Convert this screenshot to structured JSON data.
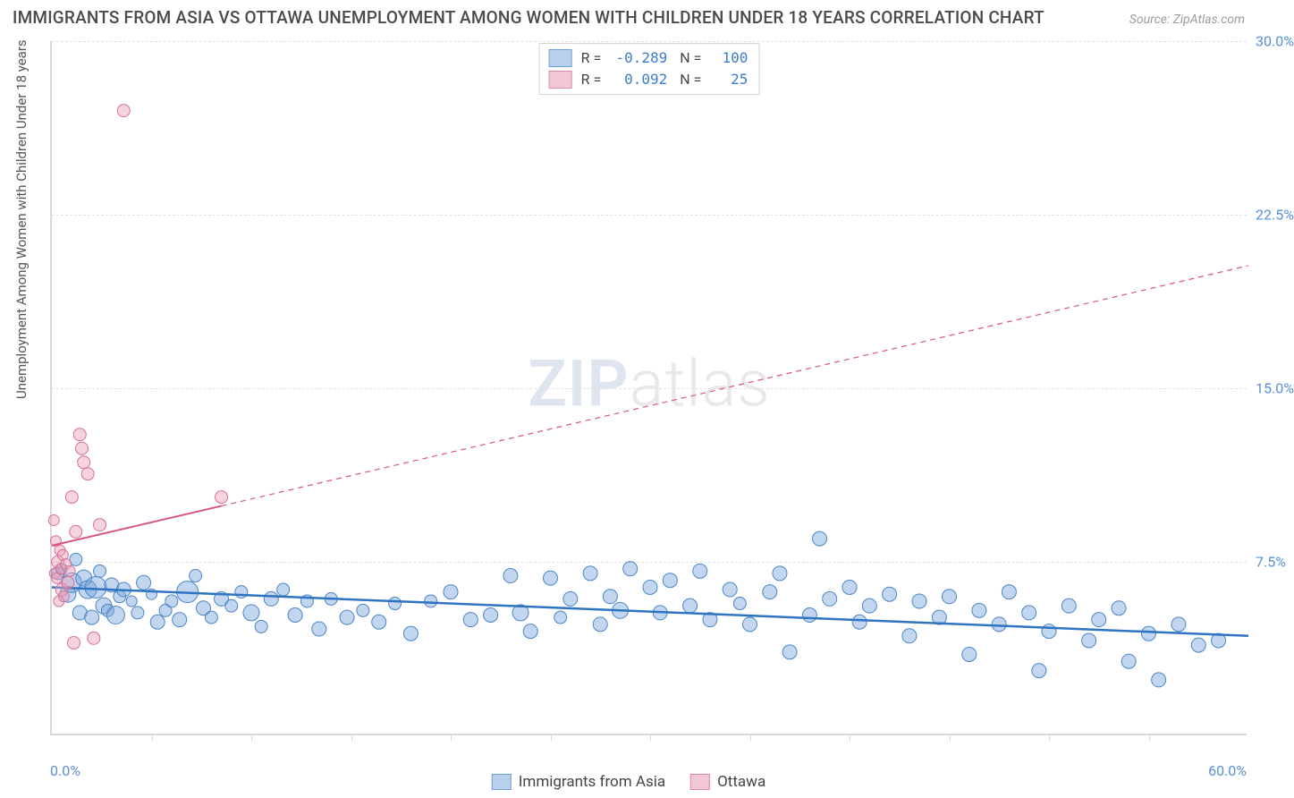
{
  "title": "IMMIGRANTS FROM ASIA VS OTTAWA UNEMPLOYMENT AMONG WOMEN WITH CHILDREN UNDER 18 YEARS CORRELATION CHART",
  "source": "Source: ZipAtlas.com",
  "watermark_zip": "ZIP",
  "watermark_atlas": "atlas",
  "ylabel": "Unemployment Among Women with Children Under 18 years",
  "chart": {
    "type": "scatter",
    "background_color": "#ffffff",
    "grid_color": "#e2e2e2",
    "axis_color": "#d8d8d8",
    "tick_label_color": "#5a8fd6",
    "xlim": [
      0,
      60
    ],
    "ylim": [
      0,
      30
    ],
    "x_origin_label": "0.0%",
    "x_max_label": "60.0%",
    "yticks": [
      {
        "v": 7.5,
        "label": "7.5%"
      },
      {
        "v": 15.0,
        "label": "15.0%"
      },
      {
        "v": 22.5,
        "label": "22.5%"
      },
      {
        "v": 30.0,
        "label": "30.0%"
      }
    ],
    "xticks_minor": [
      5,
      10,
      15,
      20,
      25,
      30,
      35,
      40,
      45,
      50,
      55
    ],
    "series": [
      {
        "key": "asia",
        "name": "Immigrants from Asia",
        "point_fill": "rgba(120,165,220,0.45)",
        "point_stroke": "#4b86c6",
        "line_color": "#2f74c0",
        "line_width": 2.5,
        "line_dash": "none",
        "swatch_fill": "#b9d0ec",
        "swatch_border": "#6f9ed6",
        "R": "-0.289",
        "N": "100",
        "trend": {
          "x1": 0,
          "y1": 6.4,
          "x2": 60,
          "y2": 4.3
        },
        "trend_extent": [
          0,
          60
        ],
        "points": [
          [
            0.3,
            7.0,
            7
          ],
          [
            0.5,
            7.2,
            6
          ],
          [
            0.8,
            6.1,
            9
          ],
          [
            1.0,
            6.6,
            11
          ],
          [
            1.2,
            7.6,
            7
          ],
          [
            1.4,
            5.3,
            8
          ],
          [
            1.6,
            6.8,
            9
          ],
          [
            1.8,
            6.3,
            10
          ],
          [
            2.0,
            5.1,
            8
          ],
          [
            2.2,
            6.4,
            12
          ],
          [
            2.4,
            7.1,
            7
          ],
          [
            2.6,
            5.6,
            9
          ],
          [
            2.8,
            5.4,
            7
          ],
          [
            3.0,
            6.5,
            8
          ],
          [
            3.2,
            5.2,
            10
          ],
          [
            3.4,
            6.0,
            7
          ],
          [
            3.6,
            6.3,
            8
          ],
          [
            4.0,
            5.8,
            6
          ],
          [
            4.3,
            5.3,
            7
          ],
          [
            4.6,
            6.6,
            8
          ],
          [
            5.0,
            6.1,
            6
          ],
          [
            5.3,
            4.9,
            8
          ],
          [
            5.7,
            5.4,
            7
          ],
          [
            6.0,
            5.8,
            7
          ],
          [
            6.4,
            5.0,
            8
          ],
          [
            6.8,
            6.2,
            12
          ],
          [
            7.2,
            6.9,
            7
          ],
          [
            7.6,
            5.5,
            8
          ],
          [
            8.0,
            5.1,
            7
          ],
          [
            8.5,
            5.9,
            8
          ],
          [
            9.0,
            5.6,
            7
          ],
          [
            9.5,
            6.2,
            7
          ],
          [
            10.0,
            5.3,
            9
          ],
          [
            10.5,
            4.7,
            7
          ],
          [
            11.0,
            5.9,
            8
          ],
          [
            11.6,
            6.3,
            7
          ],
          [
            12.2,
            5.2,
            8
          ],
          [
            12.8,
            5.8,
            7
          ],
          [
            13.4,
            4.6,
            8
          ],
          [
            14.0,
            5.9,
            7
          ],
          [
            14.8,
            5.1,
            8
          ],
          [
            15.6,
            5.4,
            7
          ],
          [
            16.4,
            4.9,
            8
          ],
          [
            17.2,
            5.7,
            7
          ],
          [
            18.0,
            4.4,
            8
          ],
          [
            19.0,
            5.8,
            7
          ],
          [
            20.0,
            6.2,
            8
          ],
          [
            21.0,
            5.0,
            8
          ],
          [
            22.0,
            5.2,
            8
          ],
          [
            23.0,
            6.9,
            8
          ],
          [
            23.5,
            5.3,
            9
          ],
          [
            24.0,
            4.5,
            8
          ],
          [
            25.0,
            6.8,
            8
          ],
          [
            25.5,
            5.1,
            7
          ],
          [
            26.0,
            5.9,
            8
          ],
          [
            27.0,
            7.0,
            8
          ],
          [
            27.5,
            4.8,
            8
          ],
          [
            28.0,
            6.0,
            8
          ],
          [
            28.5,
            5.4,
            9
          ],
          [
            29.0,
            7.2,
            8
          ],
          [
            30.0,
            6.4,
            8
          ],
          [
            30.5,
            5.3,
            8
          ],
          [
            31.0,
            6.7,
            8
          ],
          [
            32.0,
            5.6,
            8
          ],
          [
            32.5,
            7.1,
            8
          ],
          [
            33.0,
            5.0,
            8
          ],
          [
            34.0,
            6.3,
            8
          ],
          [
            34.5,
            5.7,
            7
          ],
          [
            35.0,
            4.8,
            8
          ],
          [
            36.0,
            6.2,
            8
          ],
          [
            36.5,
            7.0,
            8
          ],
          [
            37.0,
            3.6,
            8
          ],
          [
            38.0,
            5.2,
            8
          ],
          [
            38.5,
            8.5,
            8
          ],
          [
            39.0,
            5.9,
            8
          ],
          [
            40.0,
            6.4,
            8
          ],
          [
            40.5,
            4.9,
            8
          ],
          [
            41.0,
            5.6,
            8
          ],
          [
            42.0,
            6.1,
            8
          ],
          [
            43.0,
            4.3,
            8
          ],
          [
            43.5,
            5.8,
            8
          ],
          [
            44.5,
            5.1,
            8
          ],
          [
            45.0,
            6.0,
            8
          ],
          [
            46.0,
            3.5,
            8
          ],
          [
            46.5,
            5.4,
            8
          ],
          [
            47.5,
            4.8,
            8
          ],
          [
            48.0,
            6.2,
            8
          ],
          [
            49.0,
            5.3,
            8
          ],
          [
            49.5,
            2.8,
            8
          ],
          [
            50.0,
            4.5,
            8
          ],
          [
            51.0,
            5.6,
            8
          ],
          [
            52.0,
            4.1,
            8
          ],
          [
            52.5,
            5.0,
            8
          ],
          [
            53.5,
            5.5,
            8
          ],
          [
            54.0,
            3.2,
            8
          ],
          [
            55.0,
            4.4,
            8
          ],
          [
            55.5,
            2.4,
            8
          ],
          [
            56.5,
            4.8,
            8
          ],
          [
            57.5,
            3.9,
            8
          ],
          [
            58.5,
            4.1,
            8
          ]
        ]
      },
      {
        "key": "ottawa",
        "name": "Ottawa",
        "point_fill": "rgba(235,160,185,0.45)",
        "point_stroke": "#d66f95",
        "line_color": "#d6567f",
        "line_width": 2,
        "line_dash": "6,5",
        "swatch_fill": "#f3c6d4",
        "swatch_border": "#dd89a7",
        "R": "0.092",
        "N": "25",
        "trend": {
          "x1": 0,
          "y1": 8.2,
          "x2": 60,
          "y2": 20.3
        },
        "trend_extent": [
          0,
          8.5
        ],
        "points": [
          [
            0.1,
            9.3,
            6
          ],
          [
            0.15,
            7.0,
            6
          ],
          [
            0.2,
            8.4,
            6
          ],
          [
            0.25,
            6.8,
            6
          ],
          [
            0.3,
            7.5,
            7
          ],
          [
            0.35,
            5.8,
            6
          ],
          [
            0.4,
            8.0,
            6
          ],
          [
            0.45,
            7.2,
            6
          ],
          [
            0.5,
            6.3,
            7
          ],
          [
            0.55,
            7.8,
            6
          ],
          [
            0.6,
            6.0,
            6
          ],
          [
            0.7,
            7.4,
            6
          ],
          [
            0.8,
            6.6,
            7
          ],
          [
            0.9,
            7.1,
            6
          ],
          [
            1.0,
            10.3,
            7
          ],
          [
            1.1,
            4.0,
            7
          ],
          [
            1.2,
            8.8,
            7
          ],
          [
            1.4,
            13.0,
            7
          ],
          [
            1.5,
            12.4,
            7
          ],
          [
            1.6,
            11.8,
            7
          ],
          [
            1.8,
            11.3,
            7
          ],
          [
            2.1,
            4.2,
            7
          ],
          [
            2.4,
            9.1,
            7
          ],
          [
            3.6,
            27.0,
            7
          ],
          [
            8.5,
            10.3,
            7
          ]
        ]
      }
    ]
  },
  "legend_bottom": [
    {
      "key": "asia",
      "label": "Immigrants from Asia"
    },
    {
      "key": "ottawa",
      "label": "Ottawa"
    }
  ]
}
